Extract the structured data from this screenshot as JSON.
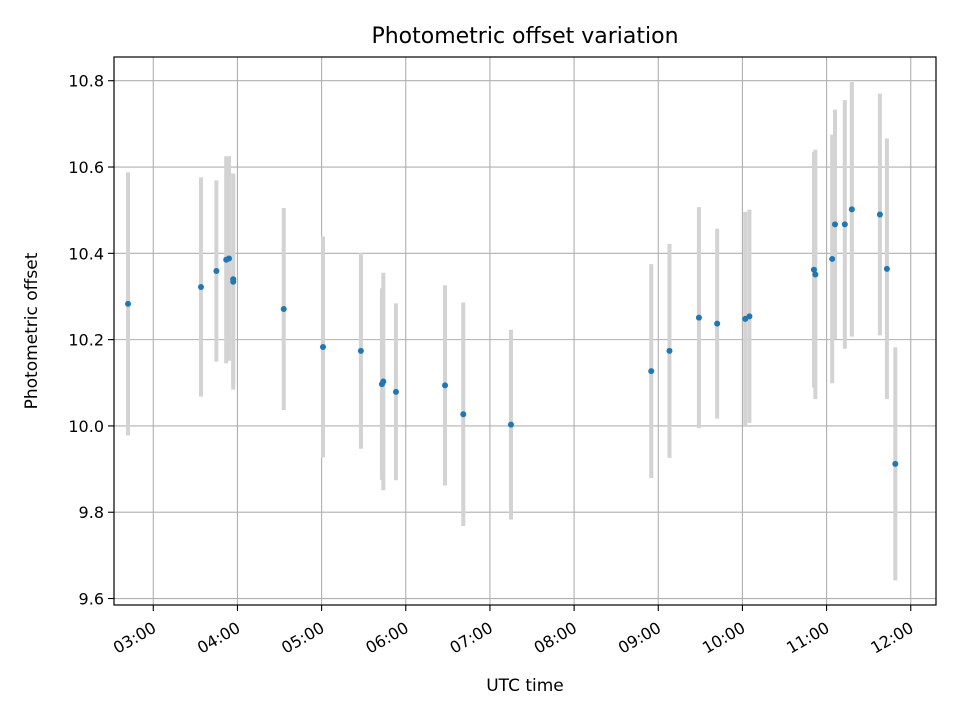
{
  "chart_data": {
    "type": "scatter",
    "title": "Photometric offset variation",
    "xlabel": "UTC time",
    "ylabel": "Photometric offset",
    "grid": true,
    "xlim": [
      "02:32",
      "12:18"
    ],
    "ylim": [
      9.585,
      10.855
    ],
    "xticks": [
      "03:00",
      "04:00",
      "05:00",
      "06:00",
      "07:00",
      "08:00",
      "09:00",
      "10:00",
      "11:00",
      "12:00"
    ],
    "yticks": [
      9.6,
      9.8,
      10.0,
      10.2,
      10.4,
      10.6,
      10.8
    ],
    "point_color": "#1f77b4",
    "errorbar_color": "#d3d3d3",
    "series": [
      {
        "points": [
          {
            "t": "02:42",
            "y": 10.283,
            "err": 0.305
          },
          {
            "t": "03:34",
            "y": 10.322,
            "err": 0.254
          },
          {
            "t": "03:45",
            "y": 10.359,
            "err": 0.21
          },
          {
            "t": "03:52",
            "y": 10.385,
            "err": 0.24
          },
          {
            "t": "03:54",
            "y": 10.388,
            "err": 0.237
          },
          {
            "t": "03:57",
            "y": 10.334,
            "err": 0.25
          },
          {
            "t": "03:57",
            "y": 10.34,
            "err": 0.245
          },
          {
            "t": "04:33",
            "y": 10.271,
            "err": 0.234
          },
          {
            "t": "05:01",
            "y": 10.183,
            "err": 0.256
          },
          {
            "t": "05:28",
            "y": 10.174,
            "err": 0.227
          },
          {
            "t": "05:43",
            "y": 10.097,
            "err": 0.222
          },
          {
            "t": "05:44",
            "y": 10.103,
            "err": 0.252
          },
          {
            "t": "05:53",
            "y": 10.079,
            "err": 0.205
          },
          {
            "t": "06:28",
            "y": 10.094,
            "err": 0.232
          },
          {
            "t": "06:41",
            "y": 10.027,
            "err": 0.259
          },
          {
            "t": "07:15",
            "y": 10.003,
            "err": 0.22
          },
          {
            "t": "08:55",
            "y": 10.127,
            "err": 0.248
          },
          {
            "t": "09:08",
            "y": 10.174,
            "err": 0.248
          },
          {
            "t": "09:29",
            "y": 10.251,
            "err": 0.256
          },
          {
            "t": "09:42",
            "y": 10.237,
            "err": 0.22
          },
          {
            "t": "10:02",
            "y": 10.248,
            "err": 0.248
          },
          {
            "t": "10:05",
            "y": 10.254,
            "err": 0.247
          },
          {
            "t": "10:51",
            "y": 10.362,
            "err": 0.273
          },
          {
            "t": "10:52",
            "y": 10.351,
            "err": 0.289
          },
          {
            "t": "11:04",
            "y": 10.387,
            "err": 0.288
          },
          {
            "t": "11:06",
            "y": 10.467,
            "err": 0.266
          },
          {
            "t": "11:13",
            "y": 10.467,
            "err": 0.288
          },
          {
            "t": "11:18",
            "y": 10.502,
            "err": 0.295
          },
          {
            "t": "11:38",
            "y": 10.49,
            "err": 0.28
          },
          {
            "t": "11:43",
            "y": 10.364,
            "err": 0.302
          },
          {
            "t": "11:49",
            "y": 9.912,
            "err": 0.27
          }
        ]
      }
    ]
  }
}
